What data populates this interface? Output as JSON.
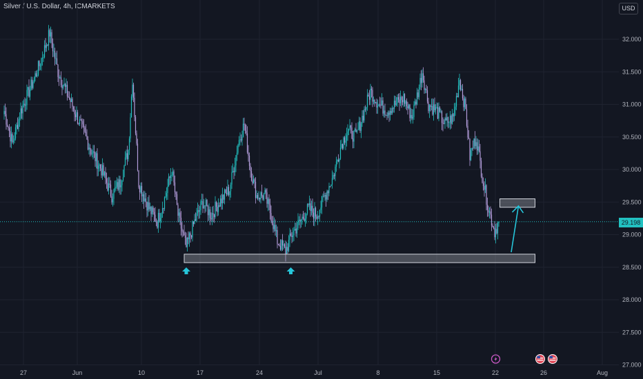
{
  "title": "Silver / U.S. Dollar, 4h, ICMARKETS",
  "currency": "USD",
  "colors": {
    "background": "#131722",
    "grid": "#1f2330",
    "up_candle": "#22c1c1",
    "down_candle": "#b39ddb",
    "zone": "#b2b5be",
    "arrow": "#26c6da",
    "price_line": "#22c1c1"
  },
  "chart_data": {
    "type": "candlestick",
    "symbol": "Silver / U.S. Dollar",
    "timeframe": "4h",
    "exchange": "ICMARKETS",
    "y_ticks": [
      "32.000",
      "31.500",
      "31.000",
      "30.500",
      "30.000",
      "29.500",
      "29.000",
      "28.500",
      "28.000",
      "27.500",
      "27.000"
    ],
    "y_tick_values": [
      32.0,
      31.5,
      31.0,
      30.5,
      30.0,
      29.5,
      29.0,
      28.5,
      28.0,
      27.5,
      27.0
    ],
    "ylim": [
      27.0,
      32.5
    ],
    "x_ticks": [
      "27",
      "Jun",
      "10",
      "17",
      "24",
      "Jul",
      "8",
      "15",
      "22",
      "26",
      "Aug"
    ],
    "last_price": "29.198",
    "last_price_value": 29.198,
    "close_path": [
      {
        "i": 0,
        "p": 30.9
      },
      {
        "i": 8,
        "p": 30.4
      },
      {
        "i": 16,
        "p": 30.9
      },
      {
        "i": 24,
        "p": 31.2
      },
      {
        "i": 34,
        "p": 31.6
      },
      {
        "i": 44,
        "p": 32.1
      },
      {
        "i": 52,
        "p": 31.5
      },
      {
        "i": 60,
        "p": 31.2
      },
      {
        "i": 68,
        "p": 30.9
      },
      {
        "i": 76,
        "p": 30.6
      },
      {
        "i": 84,
        "p": 30.3
      },
      {
        "i": 94,
        "p": 30.0
      },
      {
        "i": 104,
        "p": 29.6
      },
      {
        "i": 112,
        "p": 29.8
      },
      {
        "i": 120,
        "p": 30.3
      },
      {
        "i": 124,
        "p": 31.4
      },
      {
        "i": 130,
        "p": 29.8
      },
      {
        "i": 140,
        "p": 29.4
      },
      {
        "i": 148,
        "p": 29.2
      },
      {
        "i": 156,
        "p": 29.6
      },
      {
        "i": 162,
        "p": 30.0
      },
      {
        "i": 168,
        "p": 29.3
      },
      {
        "i": 176,
        "p": 28.8
      },
      {
        "i": 184,
        "p": 29.2
      },
      {
        "i": 192,
        "p": 29.5
      },
      {
        "i": 200,
        "p": 29.3
      },
      {
        "i": 208,
        "p": 29.5
      },
      {
        "i": 218,
        "p": 29.7
      },
      {
        "i": 226,
        "p": 30.4
      },
      {
        "i": 232,
        "p": 30.7
      },
      {
        "i": 238,
        "p": 30.0
      },
      {
        "i": 244,
        "p": 29.6
      },
      {
        "i": 252,
        "p": 29.6
      },
      {
        "i": 258,
        "p": 29.3
      },
      {
        "i": 264,
        "p": 28.9
      },
      {
        "i": 272,
        "p": 28.75
      },
      {
        "i": 278,
        "p": 29.0
      },
      {
        "i": 286,
        "p": 29.2
      },
      {
        "i": 294,
        "p": 29.4
      },
      {
        "i": 302,
        "p": 29.3
      },
      {
        "i": 310,
        "p": 29.6
      },
      {
        "i": 318,
        "p": 29.9
      },
      {
        "i": 326,
        "p": 30.4
      },
      {
        "i": 332,
        "p": 30.6
      },
      {
        "i": 340,
        "p": 30.5
      },
      {
        "i": 346,
        "p": 30.8
      },
      {
        "i": 354,
        "p": 31.2
      },
      {
        "i": 362,
        "p": 31.0
      },
      {
        "i": 370,
        "p": 30.9
      },
      {
        "i": 378,
        "p": 31.0
      },
      {
        "i": 386,
        "p": 31.1
      },
      {
        "i": 394,
        "p": 30.8
      },
      {
        "i": 400,
        "p": 31.2
      },
      {
        "i": 404,
        "p": 31.5
      },
      {
        "i": 410,
        "p": 31.0
      },
      {
        "i": 418,
        "p": 30.9
      },
      {
        "i": 426,
        "p": 30.7
      },
      {
        "i": 434,
        "p": 30.8
      },
      {
        "i": 440,
        "p": 31.4
      },
      {
        "i": 446,
        "p": 30.9
      },
      {
        "i": 450,
        "p": 30.2
      },
      {
        "i": 456,
        "p": 30.5
      },
      {
        "i": 462,
        "p": 29.9
      },
      {
        "i": 468,
        "p": 29.4
      },
      {
        "i": 474,
        "p": 29.05
      },
      {
        "i": 478,
        "p": 29.2
      }
    ],
    "zones": [
      {
        "name": "support-zone",
        "x_start_candle": 174,
        "x_end_candle": 513,
        "y_low": 28.57,
        "y_high": 28.7
      },
      {
        "name": "target-zone",
        "x_start_candle": 479,
        "x_end_candle": 513,
        "y_low": 29.42,
        "y_high": 29.55
      }
    ],
    "markers": [
      {
        "name": "bounce-marker-1",
        "candle": 176,
        "type": "up-arrow"
      },
      {
        "name": "bounce-marker-2",
        "candle": 277,
        "type": "up-arrow"
      }
    ],
    "projection": {
      "from_candle": 490,
      "from_price": 28.73,
      "to_candle": 497,
      "to_price": 29.44
    },
    "event_icons": [
      {
        "name": "lightning-event-icon",
        "candle": 475
      },
      {
        "name": "us-flag-event-icon",
        "candle": 518
      },
      {
        "name": "us-flag-event-icon",
        "candle": 530
      }
    ]
  }
}
